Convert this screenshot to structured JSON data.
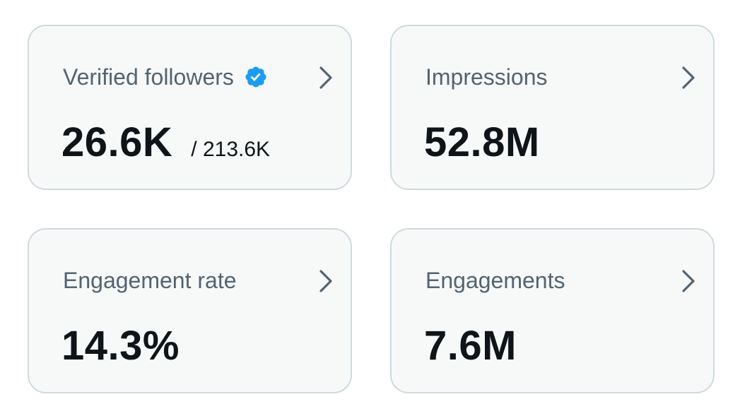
{
  "cards": [
    {
      "label": "Verified followers",
      "value": "26.6K",
      "total": "/ 213.6K",
      "badge_icon": "verified-check-icon",
      "badge_color": "#1d9bf0"
    },
    {
      "label": "Impressions",
      "value": "52.8M"
    },
    {
      "label": "Engagement rate",
      "value": "14.3%"
    },
    {
      "label": "Engagements",
      "value": "7.6M"
    }
  ],
  "icons": {
    "chevron": "chevron-right-icon"
  },
  "colors": {
    "card_background": "#f7f9f9",
    "card_border": "#cfd9de",
    "label": "#536471",
    "value": "#0f1419",
    "chevron": "#536471"
  }
}
